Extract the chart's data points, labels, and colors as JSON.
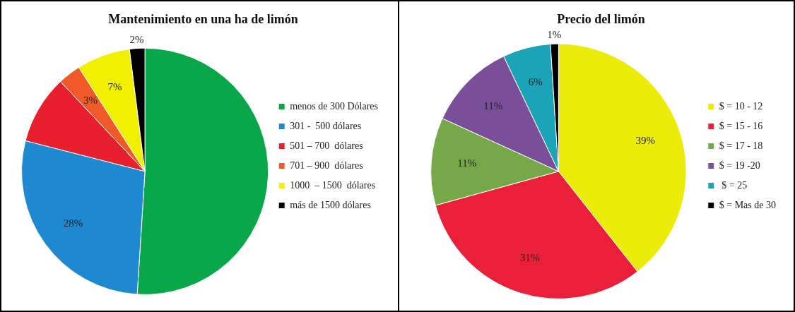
{
  "chart_data": [
    {
      "type": "pie",
      "title": "Mantenimiento en una ha de limón",
      "categories": [
        "menos de 300 Dólares",
        "301 -  500 dólares",
        "501 – 700  dólares",
        "701 – 900  dólares",
        "1000  – 1500  dólares",
        "más de 1500 dólares"
      ],
      "values": [
        51,
        28,
        9,
        3,
        7,
        2
      ],
      "colors": [
        "#0aa64a",
        "#1e88d0",
        "#e8202e",
        "#f05a28",
        "#f0f000",
        "#000000"
      ],
      "value_labels": [
        null,
        "28%",
        null,
        "3%",
        "7%",
        "2%"
      ],
      "legend": "right"
    },
    {
      "type": "pie",
      "title": "Precio del limón",
      "categories": [
        "$ = 10 - 12",
        "$ = 15 - 16",
        "$ = 17 - 18",
        "$ = 19 -20",
        " $ = 25",
        "$ = Mas de 30"
      ],
      "values": [
        39,
        31,
        11,
        11,
        6,
        1
      ],
      "colors": [
        "#ecec0a",
        "#ea1f3a",
        "#76a84a",
        "#7a4f9a",
        "#1ba3b8",
        "#000000"
      ],
      "value_labels": [
        "39%",
        "31%",
        "11%",
        "11%",
        "6%",
        "1%"
      ],
      "legend": "right"
    }
  ]
}
